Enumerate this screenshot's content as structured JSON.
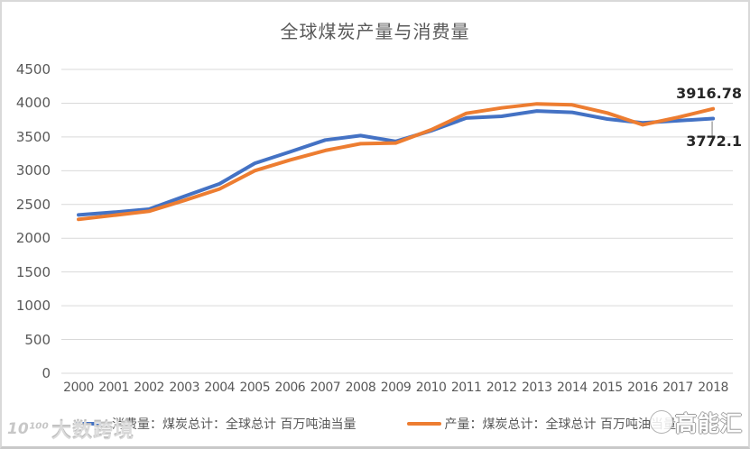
{
  "title": "全球煤炭产量与消费量",
  "chart_data": {
    "type": "line",
    "categories": [
      "2000",
      "2001",
      "2002",
      "2003",
      "2004",
      "2005",
      "2006",
      "2007",
      "2008",
      "2009",
      "2010",
      "2011",
      "2012",
      "2013",
      "2014",
      "2015",
      "2016",
      "2017",
      "2018"
    ],
    "series": [
      {
        "name": "消费量：煤炭总计：全球总计 百万吨油当量",
        "color": "#4472C4",
        "values": [
          2345,
          2385,
          2430,
          2620,
          2805,
          3110,
          3280,
          3455,
          3520,
          3435,
          3590,
          3780,
          3805,
          3885,
          3865,
          3765,
          3710,
          3740,
          3772.1
        ]
      },
      {
        "name": "产量：煤炭总计：全球总计 百万吨油当量",
        "color": "#ED7D31",
        "values": [
          2280,
          2340,
          2400,
          2560,
          2730,
          3000,
          3160,
          3300,
          3400,
          3410,
          3605,
          3850,
          3930,
          3990,
          3975,
          3855,
          3680,
          3790,
          3916.78
        ]
      }
    ],
    "title": "全球煤炭产量与消费量",
    "xlabel": "",
    "ylabel": "",
    "ylim": [
      0,
      4500
    ],
    "y_tick_step": 500,
    "grid": true,
    "legend_position": "bottom",
    "end_labels": {
      "production": "3916.78",
      "consumption": "3772.1"
    }
  },
  "legend": {
    "consumption_label": "消费量：煤炭总计：全球总计 百万吨油当量",
    "production_label": "产量：煤炭总计：全球总计 百万吨油当量"
  },
  "watermarks": {
    "bottom_left_logo": "10¹⁰⁰",
    "bottom_left_text": "大数跨境",
    "bottom_right_text": "高能汇"
  },
  "colors": {
    "consumption": "#4472C4",
    "production": "#ED7D31",
    "gridline": "#D9D9D9",
    "axis_text": "#595959",
    "title_text": "#595959",
    "data_label_text": "#262626"
  }
}
